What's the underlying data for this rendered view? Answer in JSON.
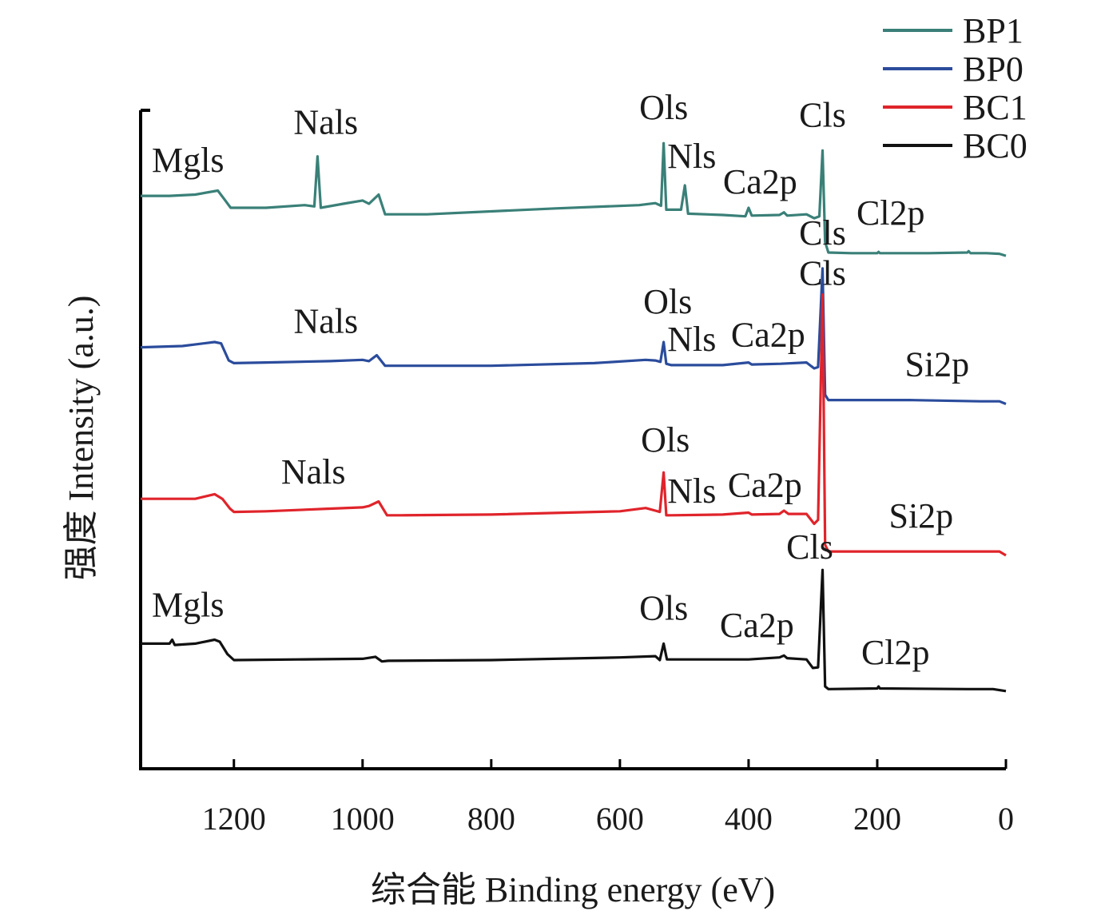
{
  "chart_data": {
    "type": "line",
    "xlabel": "综合能 Binding energy (eV)",
    "ylabel": "强度 Intensity (a.u.)",
    "xlim": [
      1345,
      0
    ],
    "x_reversed": true,
    "xticks": [
      1200,
      1000,
      800,
      600,
      400,
      200,
      0
    ],
    "y_ticks_labeled": false,
    "ylim": [
      0,
      10
    ],
    "grid": false,
    "legend": {
      "position": "top-right",
      "entries": [
        "BP1",
        "BP0",
        "BC1",
        "BC0"
      ]
    },
    "series": [
      {
        "name": "BP1",
        "color": "#3a8078",
        "points": [
          [
            1345,
            8.7
          ],
          [
            1300,
            8.7
          ],
          [
            1260,
            8.72
          ],
          [
            1225,
            8.78
          ],
          [
            1215,
            8.65
          ],
          [
            1205,
            8.52
          ],
          [
            1150,
            8.52
          ],
          [
            1090,
            8.56
          ],
          [
            1075,
            8.54
          ],
          [
            1070,
            9.3
          ],
          [
            1065,
            8.52
          ],
          [
            1030,
            8.58
          ],
          [
            1000,
            8.63
          ],
          [
            990,
            8.58
          ],
          [
            975,
            8.72
          ],
          [
            965,
            8.42
          ],
          [
            940,
            8.42
          ],
          [
            900,
            8.42
          ],
          [
            700,
            8.51
          ],
          [
            570,
            8.56
          ],
          [
            545,
            8.59
          ],
          [
            536,
            8.55
          ],
          [
            532,
            9.5
          ],
          [
            528,
            8.49
          ],
          [
            520,
            8.49
          ],
          [
            505,
            8.49
          ],
          [
            499,
            8.86
          ],
          [
            494,
            8.43
          ],
          [
            440,
            8.41
          ],
          [
            405,
            8.39
          ],
          [
            400,
            8.52
          ],
          [
            395,
            8.4
          ],
          [
            352,
            8.41
          ],
          [
            345,
            8.45
          ],
          [
            340,
            8.4
          ],
          [
            310,
            8.42
          ],
          [
            298,
            8.36
          ],
          [
            290,
            8.39
          ],
          [
            285,
            9.39
          ],
          [
            281,
            8.0
          ],
          [
            276,
            7.84
          ],
          [
            240,
            7.83
          ],
          [
            200,
            7.83
          ],
          [
            198,
            7.85
          ],
          [
            196,
            7.83
          ],
          [
            120,
            7.83
          ],
          [
            60,
            7.84
          ],
          [
            58,
            7.86
          ],
          [
            55,
            7.83
          ],
          [
            30,
            7.83
          ],
          [
            10,
            7.82
          ],
          [
            0,
            7.79
          ]
        ],
        "peak_labels": [
          {
            "text": "Mgls",
            "x": 1345
          },
          {
            "text": "Nals",
            "x": 1070
          },
          {
            "text": "Ols",
            "x": 532
          },
          {
            "text": "Nls",
            "x": 499
          },
          {
            "text": "Ca2p",
            "x": 400
          },
          {
            "text": "Cls",
            "x": 285
          },
          {
            "text": "Cl2p",
            "x": 200
          }
        ]
      },
      {
        "name": "BP0",
        "color": "#2b4c9c",
        "points": [
          [
            1345,
            6.4
          ],
          [
            1280,
            6.42
          ],
          [
            1230,
            6.48
          ],
          [
            1220,
            6.46
          ],
          [
            1208,
            6.2
          ],
          [
            1200,
            6.16
          ],
          [
            1150,
            6.17
          ],
          [
            1050,
            6.19
          ],
          [
            1000,
            6.21
          ],
          [
            990,
            6.19
          ],
          [
            978,
            6.28
          ],
          [
            965,
            6.12
          ],
          [
            940,
            6.12
          ],
          [
            800,
            6.12
          ],
          [
            640,
            6.16
          ],
          [
            560,
            6.21
          ],
          [
            545,
            6.2
          ],
          [
            537,
            6.18
          ],
          [
            532,
            6.48
          ],
          [
            528,
            6.15
          ],
          [
            520,
            6.13
          ],
          [
            440,
            6.13
          ],
          [
            400,
            6.17
          ],
          [
            395,
            6.14
          ],
          [
            350,
            6.15
          ],
          [
            310,
            6.17
          ],
          [
            298,
            6.08
          ],
          [
            292,
            6.1
          ],
          [
            285,
            7.6
          ],
          [
            281,
            5.68
          ],
          [
            276,
            5.6
          ],
          [
            150,
            5.6
          ],
          [
            40,
            5.58
          ],
          [
            10,
            5.58
          ],
          [
            0,
            5.54
          ]
        ],
        "peak_labels": [
          {
            "text": "Nals",
            "x": 978
          },
          {
            "text": "Ols",
            "x": 532
          },
          {
            "text": "Nls",
            "x": 499
          },
          {
            "text": "Ca2p",
            "x": 400
          },
          {
            "text": "Cls",
            "x": 285
          },
          {
            "text": "Si2p",
            "x": 100
          }
        ]
      },
      {
        "name": "BC1",
        "color": "#e0242b",
        "points": [
          [
            1345,
            4.1
          ],
          [
            1300,
            4.1
          ],
          [
            1260,
            4.1
          ],
          [
            1230,
            4.17
          ],
          [
            1218,
            4.1
          ],
          [
            1206,
            3.95
          ],
          [
            1200,
            3.9
          ],
          [
            1150,
            3.91
          ],
          [
            1050,
            3.95
          ],
          [
            1000,
            3.97
          ],
          [
            990,
            3.99
          ],
          [
            975,
            4.06
          ],
          [
            962,
            3.85
          ],
          [
            940,
            3.85
          ],
          [
            800,
            3.86
          ],
          [
            600,
            3.91
          ],
          [
            560,
            3.96
          ],
          [
            545,
            3.92
          ],
          [
            538,
            3.9
          ],
          [
            532,
            4.5
          ],
          [
            528,
            3.85
          ],
          [
            520,
            3.85
          ],
          [
            440,
            3.86
          ],
          [
            400,
            3.89
          ],
          [
            395,
            3.86
          ],
          [
            352,
            3.87
          ],
          [
            345,
            3.92
          ],
          [
            338,
            3.87
          ],
          [
            310,
            3.87
          ],
          [
            298,
            3.72
          ],
          [
            292,
            3.78
          ],
          [
            285,
            7.2
          ],
          [
            281,
            3.4
          ],
          [
            276,
            3.3
          ],
          [
            150,
            3.3
          ],
          [
            40,
            3.3
          ],
          [
            10,
            3.3
          ],
          [
            0,
            3.24
          ]
        ],
        "peak_labels": [
          {
            "text": "Nals",
            "x": 990
          },
          {
            "text": "Ols",
            "x": 532
          },
          {
            "text": "Nls",
            "x": 499
          },
          {
            "text": "Ca2p",
            "x": 400
          },
          {
            "text": "Cls",
            "x": 285
          },
          {
            "text": "Si2p",
            "x": 100
          }
        ]
      },
      {
        "name": "BC0",
        "color": "#111111",
        "points": [
          [
            1345,
            1.9
          ],
          [
            1300,
            1.9
          ],
          [
            1296,
            1.96
          ],
          [
            1292,
            1.88
          ],
          [
            1260,
            1.9
          ],
          [
            1230,
            1.96
          ],
          [
            1222,
            1.93
          ],
          [
            1210,
            1.74
          ],
          [
            1200,
            1.65
          ],
          [
            1100,
            1.66
          ],
          [
            1000,
            1.67
          ],
          [
            980,
            1.7
          ],
          [
            970,
            1.63
          ],
          [
            960,
            1.64
          ],
          [
            800,
            1.65
          ],
          [
            600,
            1.69
          ],
          [
            545,
            1.71
          ],
          [
            538,
            1.65
          ],
          [
            532,
            1.9
          ],
          [
            527,
            1.66
          ],
          [
            520,
            1.66
          ],
          [
            400,
            1.66
          ],
          [
            352,
            1.69
          ],
          [
            345,
            1.72
          ],
          [
            340,
            1.68
          ],
          [
            310,
            1.66
          ],
          [
            300,
            1.53
          ],
          [
            292,
            1.54
          ],
          [
            285,
            3.02
          ],
          [
            281,
            1.25
          ],
          [
            276,
            1.21
          ],
          [
            200,
            1.22
          ],
          [
            198,
            1.25
          ],
          [
            196,
            1.22
          ],
          [
            60,
            1.21
          ],
          [
            20,
            1.21
          ],
          [
            0,
            1.18
          ]
        ],
        "peak_labels": [
          {
            "text": "Mgls",
            "x": 1345
          },
          {
            "text": "Ols",
            "x": 532
          },
          {
            "text": "Ca2p",
            "x": 400
          },
          {
            "text": "Cls",
            "x": 285
          },
          {
            "text": "Cl2p",
            "x": 200
          }
        ]
      }
    ]
  }
}
